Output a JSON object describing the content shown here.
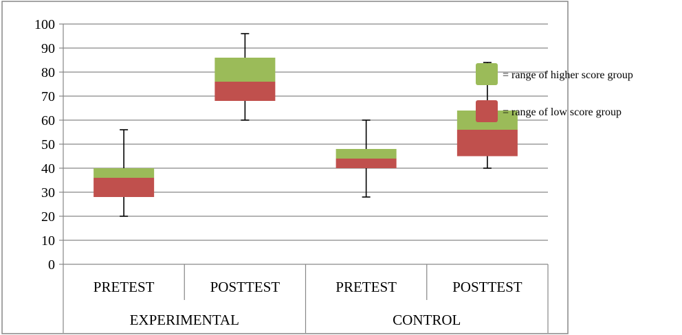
{
  "chart_data": {
    "type": "box",
    "title": "",
    "xlabel": "",
    "ylabel": "",
    "ylim": [
      0,
      100
    ],
    "yticks": [
      0,
      10,
      20,
      30,
      40,
      50,
      60,
      70,
      80,
      90,
      100
    ],
    "grid": true,
    "legend_position": "right",
    "groups": [
      {
        "label": "EXPERIMENTAL",
        "categories": [
          "PRETEST",
          "POSTTEST"
        ]
      },
      {
        "label": "CONTROL",
        "categories": [
          "PRETEST",
          "POSTTEST"
        ]
      }
    ],
    "series": [
      {
        "name": "= range of higher score group",
        "color": "#9bbb59"
      },
      {
        "name": "= range of low score group",
        "color": "#c0504d"
      }
    ],
    "boxes": [
      {
        "group": "EXPERIMENTAL",
        "category": "PRETEST",
        "whisker_low": 20,
        "whisker_high": 56,
        "low_range": [
          28,
          36
        ],
        "high_range": [
          36,
          40
        ]
      },
      {
        "group": "EXPERIMENTAL",
        "category": "POSTTEST",
        "whisker_low": 60,
        "whisker_high": 96,
        "low_range": [
          68,
          76
        ],
        "high_range": [
          76,
          86
        ]
      },
      {
        "group": "CONTROL",
        "category": "PRETEST",
        "whisker_low": 28,
        "whisker_high": 60,
        "low_range": [
          40,
          44
        ],
        "high_range": [
          44,
          48
        ]
      },
      {
        "group": "CONTROL",
        "category": "POSTTEST",
        "whisker_low": 40,
        "whisker_high": 84,
        "low_range": [
          45,
          56
        ],
        "high_range": [
          56,
          64
        ]
      }
    ]
  }
}
